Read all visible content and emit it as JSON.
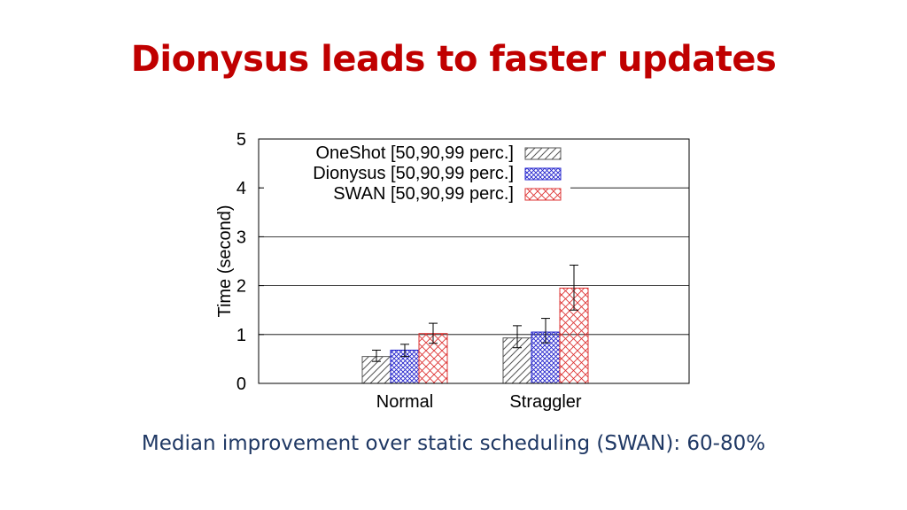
{
  "slide": {
    "title": "Dionysus leads to faster updates",
    "caption": "Median improvement over static scheduling (SWAN): 60-80%"
  },
  "chart_data": {
    "type": "bar",
    "ylabel": "Time (second)",
    "ylim": [
      0,
      5
    ],
    "yticks": [
      0,
      1,
      2,
      3,
      4,
      5
    ],
    "categories": [
      "Normal",
      "Straggler"
    ],
    "grid": true,
    "legend_position": "top-left",
    "series": [
      {
        "name": "OneShot [50,90,99 perc.]",
        "color": "#555555",
        "pattern": "diagonal-hatch",
        "values": [
          0.55,
          0.93
        ],
        "error_low": [
          0.45,
          0.73
        ],
        "error_high": [
          0.68,
          1.18
        ]
      },
      {
        "name": "Dionysus [50,90,99 perc.]",
        "color": "#2222cc",
        "pattern": "crosshatch",
        "values": [
          0.68,
          1.05
        ],
        "error_low": [
          0.55,
          0.83
        ],
        "error_high": [
          0.8,
          1.33
        ]
      },
      {
        "name": "SWAN [50,90,99 perc.]",
        "color": "#dd3333",
        "pattern": "crosshatch",
        "values": [
          1.02,
          1.95
        ],
        "error_low": [
          0.82,
          1.5
        ],
        "error_high": [
          1.23,
          2.42
        ]
      }
    ]
  }
}
